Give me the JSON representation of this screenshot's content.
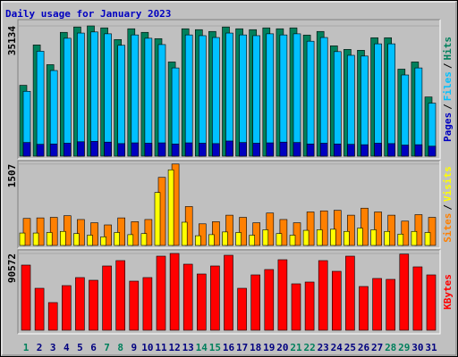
{
  "title": "Daily usage for January 2023",
  "chart_data": [
    {
      "type": "bar",
      "ylim": [
        0,
        36100
      ],
      "yticks": [
        35134
      ],
      "legend_separator": "/",
      "series": [
        {
          "name": "Hits",
          "color": "#00805c",
          "values": [
            19118,
            30008,
            24684,
            33396,
            34848,
            35134,
            34606,
            31460,
            34364,
            33396,
            31702,
            25410,
            34364,
            34122,
            33638,
            34848,
            34364,
            34122,
            34606,
            34364,
            34606,
            32670,
            33638,
            29766,
            28798,
            28556,
            31944,
            31944,
            23474,
            25410,
            15972
          ]
        },
        {
          "name": "Files",
          "color": "#00c0ff",
          "values": [
            17500,
            28300,
            23100,
            31800,
            33200,
            33500,
            33000,
            29900,
            32700,
            31800,
            30100,
            23800,
            32700,
            32500,
            32000,
            33200,
            32700,
            32500,
            33000,
            32700,
            33000,
            31000,
            32000,
            28200,
            27200,
            27000,
            30300,
            30300,
            21900,
            23800,
            14300
          ]
        },
        {
          "name": "Pages",
          "color": "#0000c0",
          "values": [
            3700,
            3200,
            3300,
            3500,
            3900,
            4000,
            3800,
            3400,
            3600,
            3500,
            3600,
            3300,
            3600,
            3500,
            3400,
            4100,
            3700,
            3500,
            3600,
            3800,
            3700,
            3300,
            3500,
            3300,
            3200,
            3100,
            3500,
            3400,
            3000,
            3100,
            2700
          ]
        }
      ]
    },
    {
      "type": "bar",
      "ylim": [
        0,
        1520
      ],
      "yticks": [
        1507
      ],
      "legend_separator": "/",
      "series": [
        {
          "name": "Visits",
          "color": "#ffff00",
          "values": [
            230,
            230,
            240,
            260,
            220,
            190,
            160,
            240,
            200,
            220,
            980,
            1400,
            430,
            180,
            200,
            250,
            240,
            190,
            290,
            220,
            190,
            280,
            290,
            300,
            260,
            320,
            290,
            260,
            210,
            260,
            240
          ]
        },
        {
          "name": "Sites",
          "color": "#ff8000",
          "values": [
            500,
            510,
            520,
            550,
            480,
            420,
            380,
            510,
            440,
            480,
            1260,
            1507,
            720,
            400,
            440,
            560,
            520,
            420,
            600,
            480,
            420,
            620,
            640,
            650,
            560,
            690,
            620,
            560,
            450,
            570,
            520
          ]
        }
      ]
    },
    {
      "type": "bar",
      "ylim": [
        0,
        91600
      ],
      "yticks": [
        90572
      ],
      "categories": [
        "1",
        "2",
        "3",
        "4",
        "5",
        "6",
        "7",
        "8",
        "9",
        "10",
        "11",
        "12",
        "13",
        "14",
        "15",
        "16",
        "17",
        "18",
        "19",
        "20",
        "21",
        "22",
        "23",
        "24",
        "25",
        "26",
        "27",
        "28",
        "29",
        "30",
        "31"
      ],
      "category_colors": [
        "#00805c",
        "#000080",
        "#000080",
        "#000080",
        "#000080",
        "#000080",
        "#00805c",
        "#00805c",
        "#000080",
        "#000080",
        "#000080",
        "#000080",
        "#000080",
        "#00805c",
        "#00805c",
        "#000080",
        "#000080",
        "#000080",
        "#000080",
        "#000080",
        "#00805c",
        "#00805c",
        "#000080",
        "#000080",
        "#000080",
        "#000080",
        "#000080",
        "#00805c",
        "#00805c",
        "#000080",
        "#000080"
      ],
      "series": [
        {
          "name": "KBytes",
          "color": "#ff0000",
          "values": [
            76869,
            49491,
            32643,
            52650,
            62127,
            58968,
            75816,
            82134,
            57915,
            62127,
            87399,
            90572,
            77922,
            66339,
            75816,
            88452,
            49491,
            65286,
            71604,
            83187,
            54756,
            56862,
            82134,
            69498,
            87399,
            51597,
            61074,
            60021,
            89800,
            74763,
            65286
          ]
        }
      ]
    }
  ]
}
